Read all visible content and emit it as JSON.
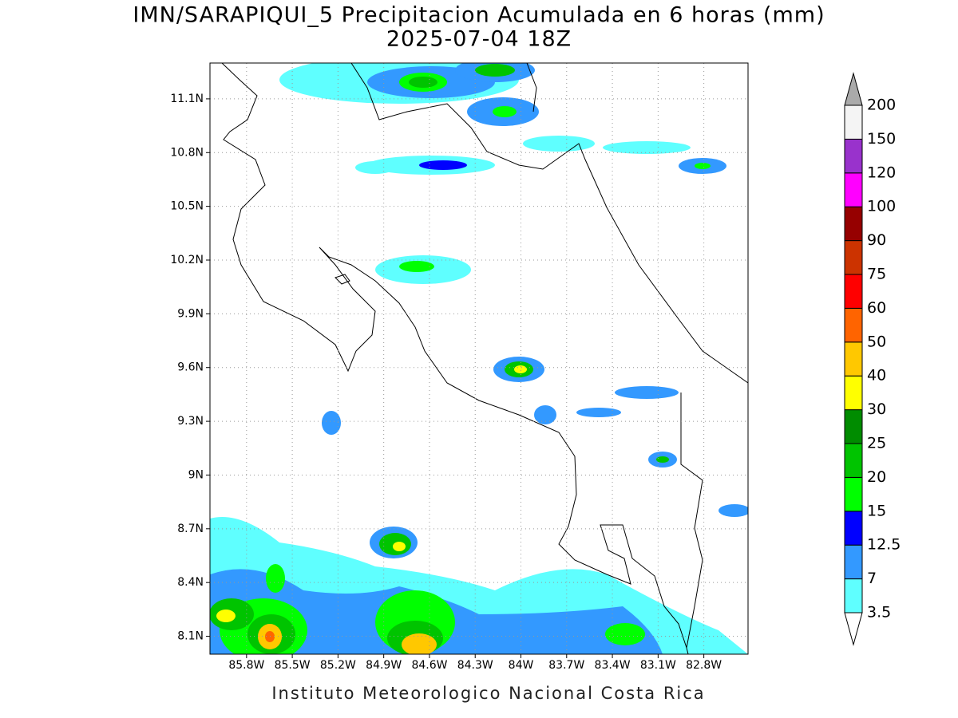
{
  "header": {
    "title": "IMN/SARAPIQUI_5 Precipitacion Acumulada en 6 horas (mm)",
    "subtitle": "2025-07-04 18Z"
  },
  "map": {
    "lonlim": [
      -86.04,
      -82.51
    ],
    "latlim": [
      8.0,
      11.3
    ],
    "lonticks": [
      {
        "value": -85.8,
        "label": "85.8W"
      },
      {
        "value": -85.5,
        "label": "85.5W"
      },
      {
        "value": -85.2,
        "label": "85.2W"
      },
      {
        "value": -84.9,
        "label": "84.9W"
      },
      {
        "value": -84.6,
        "label": "84.6W"
      },
      {
        "value": -84.3,
        "label": "84.3W"
      },
      {
        "value": -84.0,
        "label": "84W"
      },
      {
        "value": -83.7,
        "label": "83.7W"
      },
      {
        "value": -83.4,
        "label": "83.4W"
      },
      {
        "value": -83.1,
        "label": "83.1W"
      },
      {
        "value": -82.8,
        "label": "82.8W"
      }
    ],
    "latticks": [
      {
        "value": 8.1,
        "label": "8.1N"
      },
      {
        "value": 8.4,
        "label": "8.4N"
      },
      {
        "value": 8.7,
        "label": "8.7N"
      },
      {
        "value": 9.0,
        "label": "9N"
      },
      {
        "value": 9.3,
        "label": "9.3N"
      },
      {
        "value": 9.6,
        "label": "9.6N"
      },
      {
        "value": 9.9,
        "label": "9.9N"
      },
      {
        "value": 10.2,
        "label": "10.2N"
      },
      {
        "value": 10.5,
        "label": "10.5N"
      },
      {
        "value": 10.8,
        "label": "10.8N"
      },
      {
        "value": 11.1,
        "label": "11.1N"
      }
    ],
    "grid": true
  },
  "colorbar": {
    "levels": [
      3.5,
      7,
      12.5,
      15,
      20,
      25,
      30,
      40,
      50,
      60,
      75,
      90,
      100,
      120,
      150,
      200
    ],
    "colors": [
      "#ffffff",
      "#5fffff",
      "#3399ff",
      "#0000ff",
      "#00ff00",
      "#00c400",
      "#008c00",
      "#ffff00",
      "#ffc800",
      "#ff6400",
      "#ff0000",
      "#cc3300",
      "#960000",
      "#ff00ff",
      "#9932cc",
      "#f4f4f4",
      "#aaaaaa"
    ]
  },
  "footer": "Instituto Meteorologico Nacional Costa Rica"
}
